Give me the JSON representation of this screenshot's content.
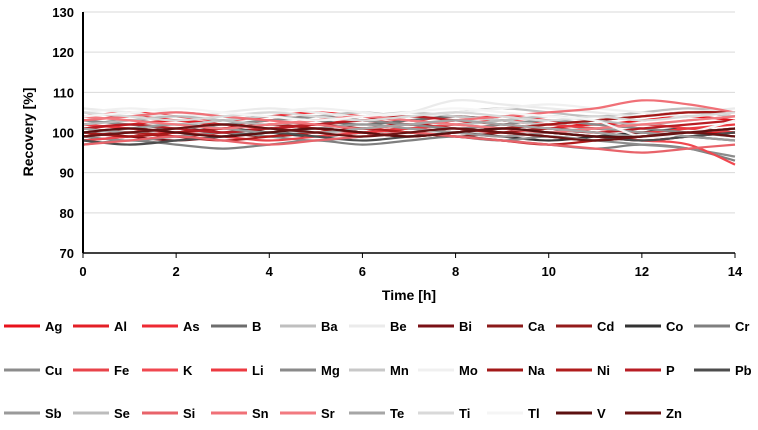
{
  "chart_data": {
    "type": "line",
    "title": "",
    "xlabel": "Time [h]",
    "ylabel": "Recovery [%]",
    "xlim": [
      0,
      14
    ],
    "ylim": [
      70,
      130
    ],
    "xticks": [
      0,
      2,
      4,
      6,
      8,
      10,
      12,
      14
    ],
    "yticks": [
      70,
      80,
      90,
      100,
      110,
      120,
      130
    ],
    "grid": "horizontal",
    "legend_position": "bottom",
    "x": [
      0,
      1,
      2,
      3,
      4,
      5,
      6,
      7,
      8,
      9,
      10,
      11,
      12,
      13,
      14
    ],
    "series": [
      {
        "name": "Ag",
        "color": "#e8111b",
        "values": [
          103,
          104,
          103,
          102,
          103,
          104,
          103,
          102,
          103,
          104,
          103,
          102,
          103,
          104,
          103
        ]
      },
      {
        "name": "Al",
        "color": "#e31f26",
        "values": [
          101,
          102,
          103,
          102,
          101,
          102,
          103,
          102,
          101,
          100,
          101,
          102,
          101,
          100,
          100
        ]
      },
      {
        "name": "As",
        "color": "#ee2a33",
        "values": [
          104,
          105,
          104,
          103,
          104,
          105,
          104,
          103,
          104,
          103,
          102,
          103,
          104,
          105,
          104
        ]
      },
      {
        "name": "B",
        "color": "#6d6d6d",
        "values": [
          102,
          103,
          102,
          103,
          104,
          103,
          102,
          103,
          104,
          103,
          102,
          101,
          100,
          99,
          98
        ]
      },
      {
        "name": "Ba",
        "color": "#bfbfbf",
        "values": [
          105,
          104,
          105,
          104,
          103,
          104,
          105,
          104,
          105,
          106,
          105,
          104,
          105,
          106,
          105
        ]
      },
      {
        "name": "Be",
        "color": "#ebebeb",
        "values": [
          106,
          105,
          104,
          105,
          106,
          105,
          104,
          105,
          108,
          107,
          106,
          105,
          104,
          105,
          106
        ]
      },
      {
        "name": "Bi",
        "color": "#7a1016",
        "values": [
          100,
          99,
          98,
          99,
          100,
          101,
          100,
          99,
          100,
          101,
          100,
          99,
          98,
          99,
          100
        ]
      },
      {
        "name": "Ca",
        "color": "#8b1a1a",
        "values": [
          99,
          100,
          101,
          100,
          99,
          100,
          101,
          102,
          101,
          100,
          99,
          98,
          99,
          100,
          101
        ]
      },
      {
        "name": "Cd",
        "color": "#941b1b",
        "values": [
          101,
          100,
          99,
          100,
          101,
          102,
          101,
          100,
          99,
          100,
          101,
          100,
          99,
          100,
          99
        ]
      },
      {
        "name": "Co",
        "color": "#333333",
        "values": [
          98,
          99,
          100,
          101,
          100,
          99,
          100,
          101,
          100,
          99,
          98,
          99,
          100,
          101,
          100
        ]
      },
      {
        "name": "Cr",
        "color": "#7f7f7f",
        "values": [
          97,
          98,
          97,
          96,
          97,
          98,
          97,
          98,
          99,
          98,
          97,
          96,
          97,
          96,
          93
        ]
      },
      {
        "name": "Cu",
        "color": "#8c8c8c",
        "values": [
          99,
          98,
          99,
          100,
          99,
          98,
          99,
          100,
          99,
          98,
          99,
          98,
          97,
          96,
          94
        ]
      },
      {
        "name": "Fe",
        "color": "#e8434a",
        "values": [
          100,
          101,
          100,
          99,
          98,
          99,
          100,
          101,
          100,
          99,
          100,
          101,
          102,
          101,
          100
        ]
      },
      {
        "name": "K",
        "color": "#f04850",
        "values": [
          98,
          99,
          100,
          101,
          102,
          103,
          104,
          103,
          102,
          101,
          100,
          99,
          98,
          97,
          92
        ]
      },
      {
        "name": "Li",
        "color": "#ec3a41",
        "values": [
          102,
          101,
          100,
          101,
          102,
          101,
          100,
          101,
          102,
          103,
          102,
          101,
          100,
          101,
          102
        ]
      },
      {
        "name": "Mg",
        "color": "#8a8a8a",
        "values": [
          103,
          102,
          101,
          102,
          103,
          104,
          103,
          102,
          101,
          102,
          103,
          102,
          101,
          100,
          99
        ]
      },
      {
        "name": "Mn",
        "color": "#c8c8c8",
        "values": [
          104,
          103,
          102,
          103,
          104,
          103,
          104,
          105,
          104,
          103,
          102,
          103,
          104,
          105,
          104
        ]
      },
      {
        "name": "Mo",
        "color": "#f0f0f0",
        "values": [
          105,
          106,
          105,
          104,
          105,
          106,
          105,
          104,
          105,
          106,
          107,
          106,
          105,
          104,
          105
        ]
      },
      {
        "name": "Na",
        "color": "#a31919",
        "values": [
          100,
          99,
          100,
          101,
          102,
          101,
          100,
          99,
          100,
          101,
          102,
          103,
          104,
          105,
          105
        ]
      },
      {
        "name": "Ni",
        "color": "#b01c1c",
        "values": [
          99,
          100,
          99,
          98,
          99,
          100,
          101,
          100,
          99,
          98,
          97,
          98,
          99,
          100,
          101
        ]
      },
      {
        "name": "P",
        "color": "#b81d24",
        "values": [
          101,
          102,
          101,
          100,
          101,
          102,
          103,
          104,
          103,
          102,
          101,
          100,
          101,
          102,
          103
        ]
      },
      {
        "name": "Pb",
        "color": "#4d4d4d",
        "values": [
          98,
          97,
          98,
          99,
          100,
          99,
          98,
          99,
          100,
          101,
          100,
          99,
          98,
          99,
          100
        ]
      },
      {
        "name": "Sb",
        "color": "#9a9a9a",
        "values": [
          100,
          101,
          102,
          101,
          100,
          101,
          102,
          101,
          100,
          99,
          100,
          101,
          100,
          99,
          98
        ]
      },
      {
        "name": "Se",
        "color": "#bcbcbc",
        "values": [
          102,
          103,
          104,
          103,
          102,
          103,
          104,
          103,
          102,
          103,
          104,
          103,
          102,
          103,
          104
        ]
      },
      {
        "name": "Si",
        "color": "#e8636a",
        "values": [
          97,
          98,
          99,
          98,
          97,
          98,
          99,
          100,
          99,
          98,
          97,
          96,
          95,
          96,
          97
        ]
      },
      {
        "name": "Sn",
        "color": "#f07077",
        "values": [
          103,
          104,
          105,
          104,
          103,
          102,
          101,
          102,
          103,
          104,
          105,
          106,
          108,
          107,
          105
        ]
      },
      {
        "name": "Sr",
        "color": "#f27a80",
        "values": [
          104,
          103,
          102,
          101,
          102,
          103,
          104,
          103,
          102,
          101,
          100,
          101,
          102,
          103,
          104
        ]
      },
      {
        "name": "Te",
        "color": "#a6a6a6",
        "values": [
          101,
          100,
          101,
          102,
          101,
          100,
          101,
          102,
          103,
          102,
          101,
          100,
          99,
          100,
          101
        ]
      },
      {
        "name": "Ti",
        "color": "#d9d9d9",
        "values": [
          105,
          104,
          103,
          104,
          105,
          104,
          103,
          104,
          105,
          104,
          103,
          104,
          103,
          104,
          105
        ]
      },
      {
        "name": "Tl",
        "color": "#f5f5f5",
        "values": [
          104,
          105,
          106,
          105,
          104,
          103,
          104,
          105,
          106,
          105,
          104,
          103,
          99,
          100,
          103
        ]
      },
      {
        "name": "V",
        "color": "#5c1010",
        "values": [
          100,
          101,
          100,
          99,
          100,
          101,
          100,
          99,
          100,
          101,
          100,
          99,
          99,
          100,
          101
        ]
      },
      {
        "name": "Zn",
        "color": "#6b1414",
        "values": [
          99,
          100,
          101,
          102,
          101,
          100,
          99,
          100,
          101,
          100,
          99,
          98,
          99,
          100,
          99
        ]
      }
    ]
  }
}
